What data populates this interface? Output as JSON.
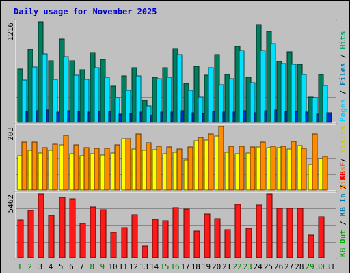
{
  "chart_data": {
    "type": "bar",
    "title": "Daily usage for November 2025",
    "categories": [
      "1",
      "2",
      "3",
      "4",
      "5",
      "6",
      "7",
      "8",
      "9",
      "10",
      "11",
      "12",
      "13",
      "14",
      "15",
      "16",
      "17",
      "18",
      "19",
      "20",
      "21",
      "22",
      "23",
      "24",
      "25",
      "26",
      "27",
      "28",
      "29",
      "30",
      "31"
    ],
    "weekend_categories": [
      "1",
      "2",
      "8",
      "9",
      "15",
      "16",
      "22",
      "23",
      "29",
      "30"
    ],
    "weekend_color": "#007700",
    "weekday_color": "#000000",
    "panels": [
      {
        "id": "requests",
        "max_label": "1216",
        "max": 1216,
        "legend": [
          {
            "text": "Hits",
            "color": "#00aa77"
          },
          {
            "text": "Files",
            "color": "#0077aa"
          },
          {
            "text": "Pages",
            "color": "#00d0ff"
          }
        ],
        "series": [
          {
            "name": "Hits",
            "color": "#007f5f",
            "values": [
              649,
              883,
              1216,
              744,
              1010,
              746,
              633,
              844,
              757,
              442,
              559,
              659,
              263,
              545,
              659,
              891,
              468,
              682,
              567,
              819,
              578,
              917,
              545,
              1183,
              1097,
              733,
              851,
              707,
              307,
              581,
              null
            ]
          },
          {
            "name": "Files",
            "color": "#00e0ff",
            "values": [
              516,
              674,
              829,
              522,
              790,
              567,
              522,
              662,
              545,
              297,
              390,
              559,
              196,
              527,
              550,
              816,
              387,
              306,
              662,
              456,
              531,
              869,
              482,
              869,
              950,
              710,
              700,
              580,
              297,
              443,
              null
            ]
          },
          {
            "name": "Pages",
            "color": "#0033cc",
            "values": [
              130,
              140,
              148,
              128,
              138,
              130,
              128,
              136,
              130,
              100,
              110,
              125,
              80,
              125,
              128,
              140,
              118,
              104,
              130,
              125,
              124,
              143,
              118,
              143,
              146,
              132,
              132,
              128,
              100,
              118,
              null
            ]
          }
        ]
      },
      {
        "id": "visits",
        "max_label": "203",
        "max": 203,
        "legend": [
          {
            "text": "Visits",
            "color": "#cccc00"
          },
          {
            "text": "Sites",
            "color": "#ff8800"
          }
        ],
        "series": [
          {
            "name": "Visits",
            "color": "#ffff00",
            "values": [
              110,
              126,
              117,
              127,
              144,
              116,
              110,
              115,
              112,
              117,
              163,
              130,
              126,
              129,
              116,
              120,
              96,
              158,
              160,
              173,
              121,
              115,
              117,
              138,
              135,
              136,
              131,
              141,
              80,
              100,
              null
            ]
          },
          {
            "name": "Sites",
            "color": "#ff8c00",
            "values": [
              152,
              152,
              135,
              146,
              174,
              143,
              136,
              133,
              134,
              143,
              164,
              180,
              150,
              140,
              137,
              132,
              137,
              169,
              178,
              203,
              140,
              140,
              137,
              152,
              140,
              140,
              155,
              133,
              180,
              107,
              null
            ]
          }
        ]
      },
      {
        "id": "traffic",
        "max_label": "5462",
        "max": 5462,
        "legend": [
          {
            "text": "KB F",
            "color": "#ee0000"
          },
          {
            "text": "KB In",
            "color": "#0077aa"
          },
          {
            "text": "KB Out",
            "color": "#00aa00"
          }
        ],
        "series": [
          {
            "name": "KB F",
            "color": "#ff1a1a",
            "values": [
              3247,
              4039,
              5462,
              3662,
              5183,
              5049,
              2953,
              4363,
              4115,
              2179,
              2584,
              3706,
              1022,
              3291,
              3152,
              4275,
              4173,
              2268,
              3759,
              3332,
              2410,
              4573,
              2526,
              4546,
              5462,
              4232,
              4206,
              4204,
              1948,
              3497,
              null
            ]
          }
        ]
      }
    ]
  }
}
